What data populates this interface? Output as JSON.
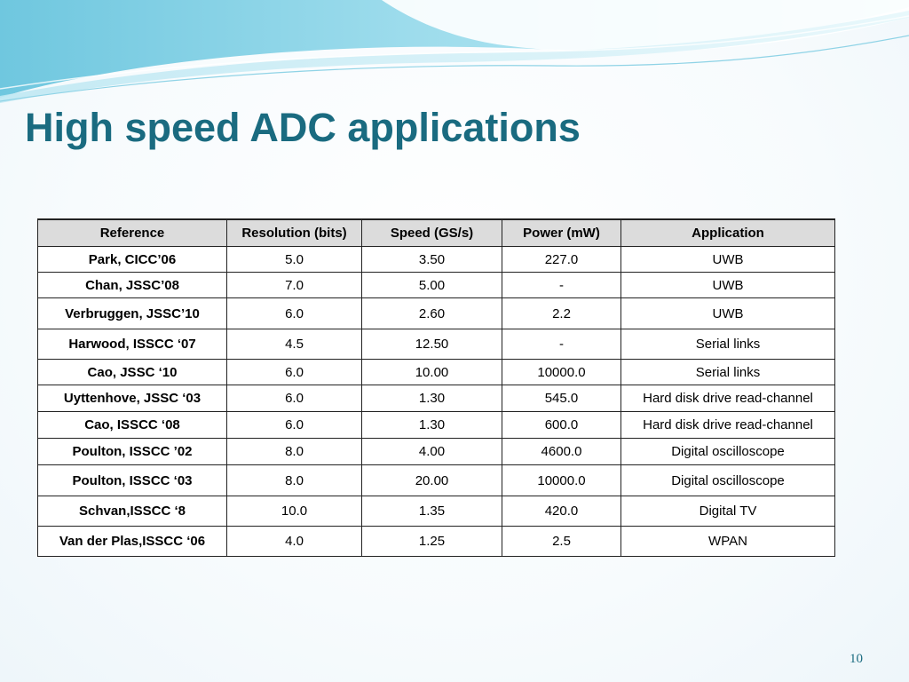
{
  "slide": {
    "title": "High speed ADC applications",
    "page_number": "10",
    "accent_color": "#1a6b80"
  },
  "table": {
    "headers": [
      "Reference",
      "Resolution (bits)",
      "Speed (GS/s)",
      "Power (mW)",
      "Application"
    ],
    "rows": [
      [
        "Park, CICC’06",
        "5.0",
        "3.50",
        "227.0",
        "UWB"
      ],
      [
        "Chan, JSSC’08",
        "7.0",
        "5.00",
        "-",
        "UWB"
      ],
      [
        "Verbruggen, JSSC’10",
        "6.0",
        "2.60",
        "2.2",
        "UWB"
      ],
      [
        "Harwood, ISSCC ‘07",
        "4.5",
        "12.50",
        "-",
        "Serial links"
      ],
      [
        "Cao, JSSC ‘10",
        "6.0",
        "10.00",
        "10000.0",
        "Serial links"
      ],
      [
        "Uyttenhove, JSSC ‘03",
        "6.0",
        "1.30",
        "545.0",
        "Hard disk drive read-channel"
      ],
      [
        "Cao, ISSCC ‘08",
        "6.0",
        "1.30",
        "600.0",
        "Hard disk drive read-channel"
      ],
      [
        "Poulton, ISSCC ’02",
        "8.0",
        "4.00",
        "4600.0",
        "Digital oscilloscope"
      ],
      [
        "Poulton, ISSCC ‘03",
        "8.0",
        "20.00",
        "10000.0",
        "Digital oscilloscope"
      ],
      [
        "Schvan,ISSCC ‘8",
        "10.0",
        "1.35",
        "420.0",
        "Digital TV"
      ],
      [
        "Van der Plas,ISSCC ‘06",
        "4.0",
        "1.25",
        "2.5",
        "WPAN"
      ]
    ]
  }
}
